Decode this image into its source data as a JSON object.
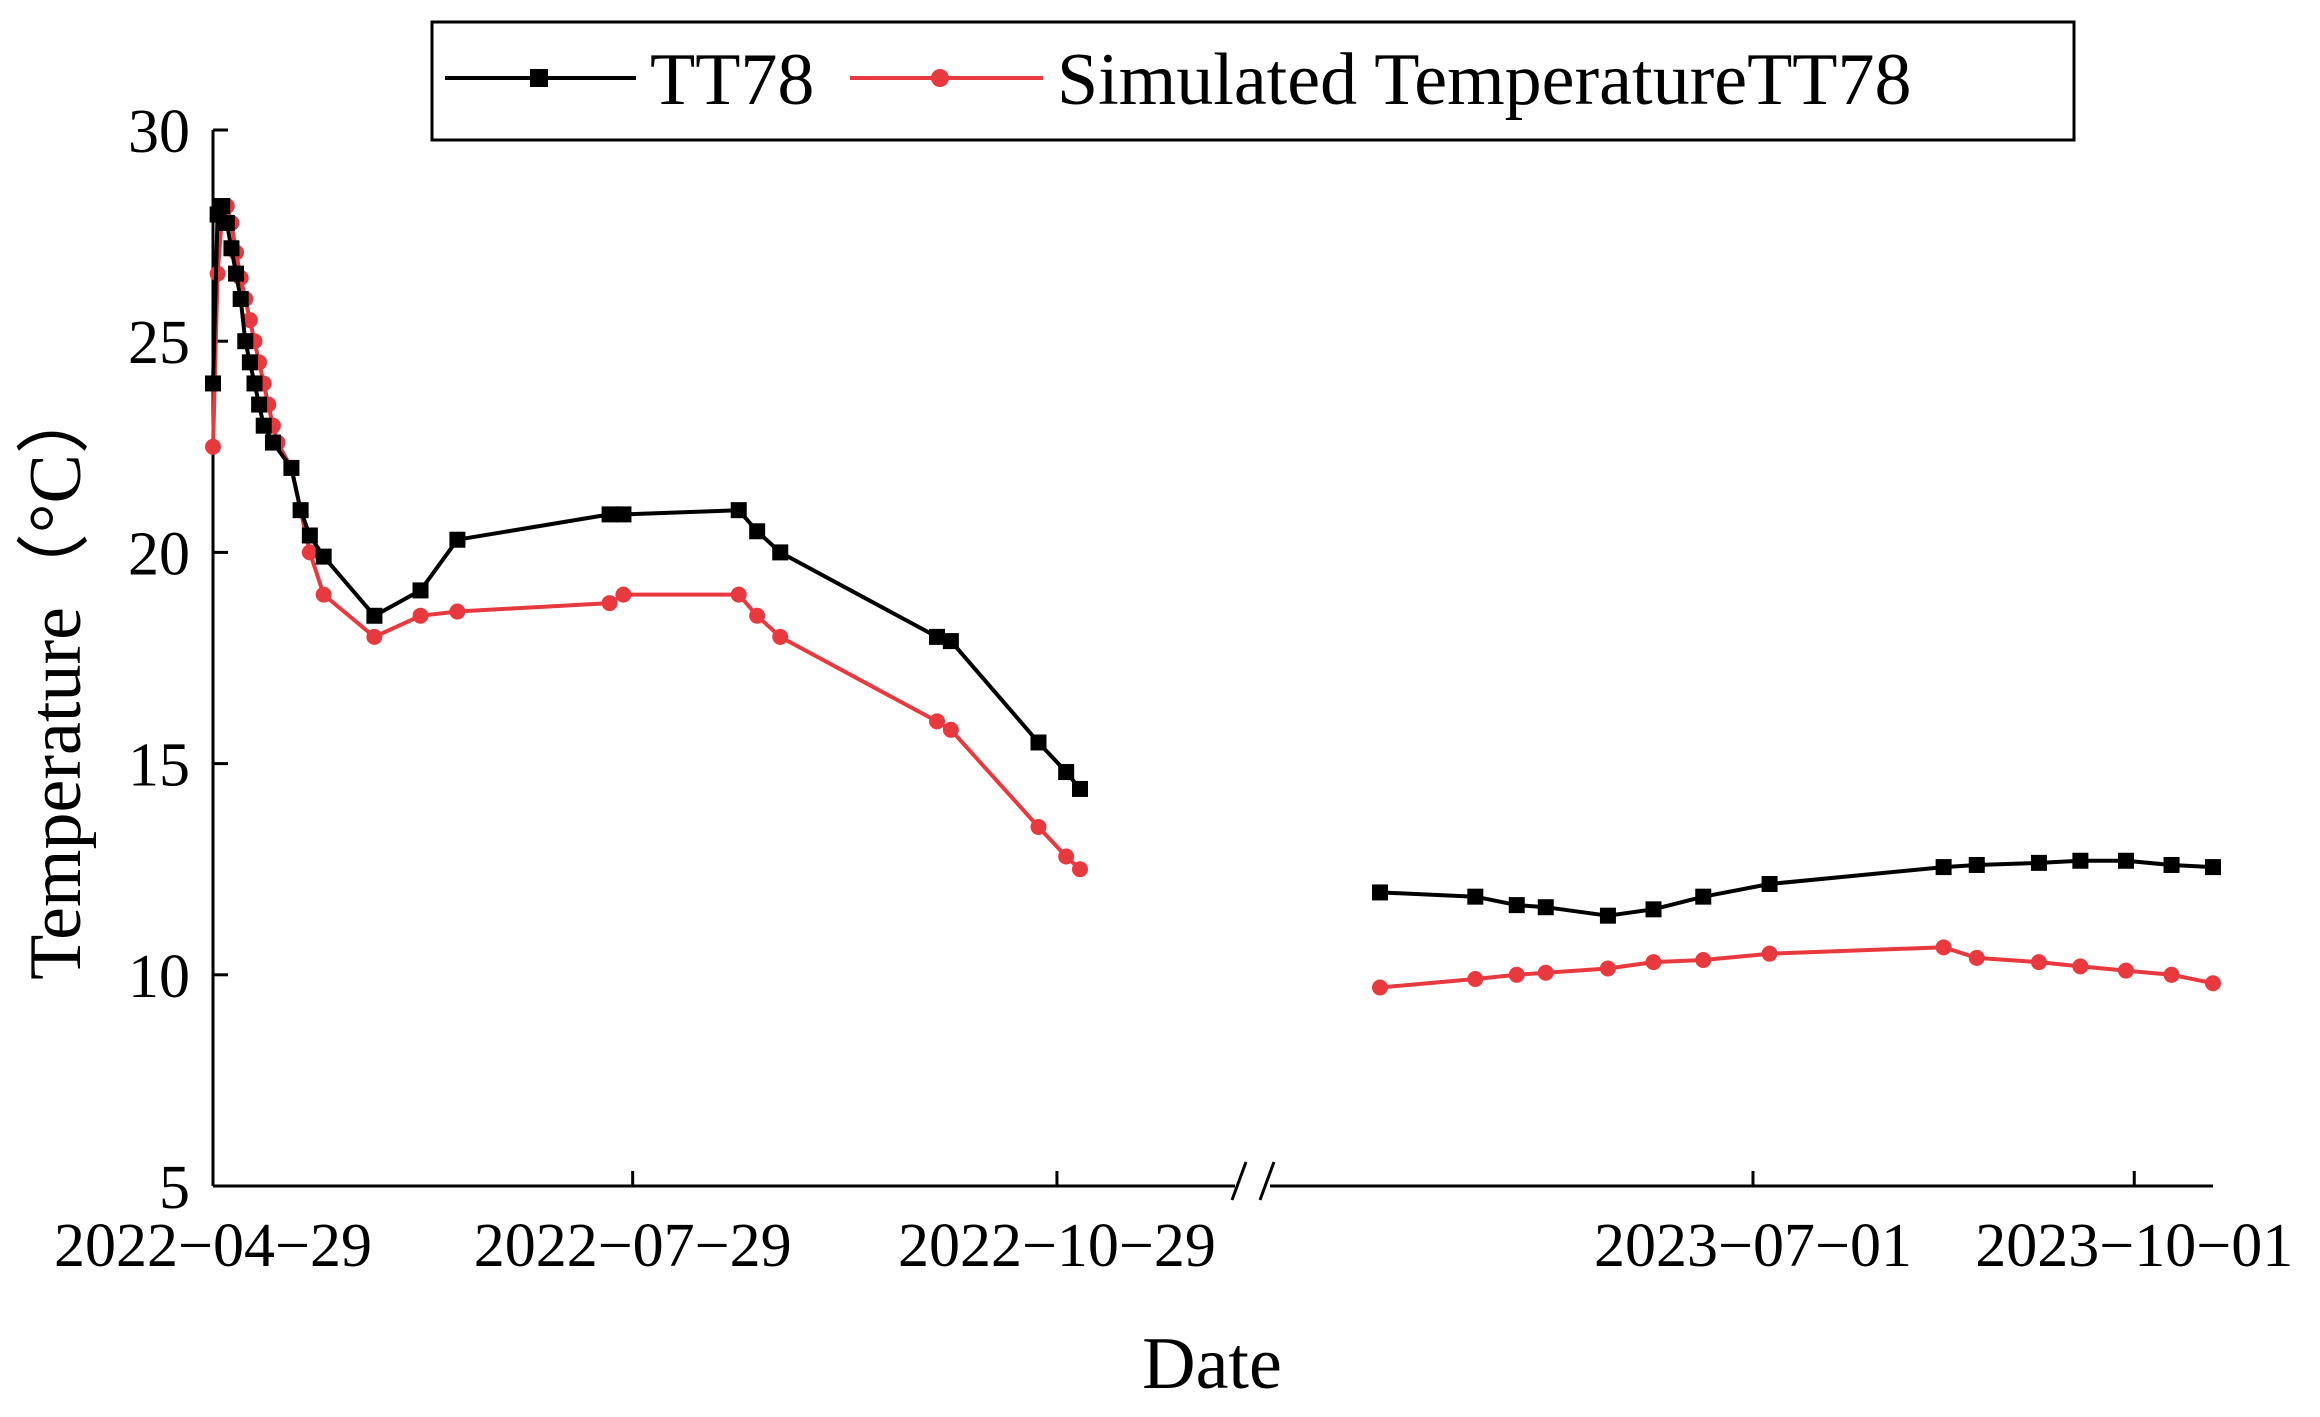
{
  "chart_data": {
    "type": "line",
    "xlabel": "Date",
    "ylabel": "Temperature（°C）",
    "ylim": [
      5,
      30
    ],
    "yticks": [
      5,
      10,
      15,
      20,
      25,
      30
    ],
    "x_axis_break": true,
    "segments": [
      {
        "xlim": [
          "2022-04-29",
          "2022-11-03"
        ],
        "ticks": [
          "2022-04-29",
          "2022-07-29",
          "2022-10-29"
        ]
      },
      {
        "xlim": [
          "2023-04-02",
          "2023-10-20"
        ],
        "ticks": [
          "2023-07-01",
          "2023-10-01"
        ]
      }
    ],
    "legend_position": "top",
    "series": [
      {
        "name": "TT78",
        "color": "#000000",
        "marker": "square",
        "points": [
          [
            "2022-04-29",
            24.0
          ],
          [
            "2022-04-30",
            28.0
          ],
          [
            "2022-05-01",
            28.2
          ],
          [
            "2022-05-02",
            27.8
          ],
          [
            "2022-05-03",
            27.2
          ],
          [
            "2022-05-04",
            26.6
          ],
          [
            "2022-05-05",
            26.0
          ],
          [
            "2022-05-06",
            25.0
          ],
          [
            "2022-05-07",
            24.5
          ],
          [
            "2022-05-08",
            24.0
          ],
          [
            "2022-05-09",
            23.5
          ],
          [
            "2022-05-10",
            23.0
          ],
          [
            "2022-05-12",
            22.6
          ],
          [
            "2022-05-16",
            22.0
          ],
          [
            "2022-05-18",
            21.0
          ],
          [
            "2022-05-20",
            20.4
          ],
          [
            "2022-05-23",
            19.9
          ],
          [
            "2022-06-03",
            18.5
          ],
          [
            "2022-06-13",
            19.1
          ],
          [
            "2022-06-21",
            20.3
          ],
          [
            "2022-07-24",
            20.9
          ],
          [
            "2022-07-27",
            20.9
          ],
          [
            "2022-08-21",
            21.0
          ],
          [
            "2022-08-25",
            20.5
          ],
          [
            "2022-08-30",
            20.0
          ],
          [
            "2022-10-03",
            18.0
          ],
          [
            "2022-10-06",
            17.9
          ],
          [
            "2022-10-25",
            15.5
          ],
          [
            "2022-10-31",
            14.8
          ],
          [
            "2022-11-03",
            14.4
          ]
        ]
      },
      {
        "name": "Simulated TemperatureTT78",
        "color": "#e8393e",
        "marker": "circle",
        "points": [
          [
            "2022-04-29",
            22.5
          ],
          [
            "2022-04-30",
            26.6
          ],
          [
            "2022-05-01",
            28.0
          ],
          [
            "2022-05-02",
            28.2
          ],
          [
            "2022-05-03",
            27.8
          ],
          [
            "2022-05-04",
            27.1
          ],
          [
            "2022-05-05",
            26.5
          ],
          [
            "2022-05-06",
            26.0
          ],
          [
            "2022-05-07",
            25.5
          ],
          [
            "2022-05-08",
            25.0
          ],
          [
            "2022-05-09",
            24.5
          ],
          [
            "2022-05-10",
            24.0
          ],
          [
            "2022-05-11",
            23.5
          ],
          [
            "2022-05-12",
            23.0
          ],
          [
            "2022-05-13",
            22.6
          ],
          [
            "2022-05-16",
            22.0
          ],
          [
            "2022-05-18",
            21.0
          ],
          [
            "2022-05-20",
            20.0
          ],
          [
            "2022-05-23",
            19.0
          ],
          [
            "2022-06-03",
            18.0
          ],
          [
            "2022-06-13",
            18.5
          ],
          [
            "2022-06-21",
            18.6
          ],
          [
            "2022-07-24",
            18.8
          ],
          [
            "2022-07-27",
            19.0
          ],
          [
            "2022-08-21",
            19.0
          ],
          [
            "2022-08-25",
            18.5
          ],
          [
            "2022-08-30",
            18.0
          ],
          [
            "2022-10-03",
            16.0
          ],
          [
            "2022-10-06",
            15.8
          ],
          [
            "2022-10-25",
            13.5
          ],
          [
            "2022-10-31",
            12.8
          ],
          [
            "2022-11-03",
            12.5
          ]
        ]
      }
    ],
    "series_after_break": [
      {
        "name": "TT78",
        "points": [
          [
            "2023-04-02",
            11.95
          ],
          [
            "2023-04-25",
            11.85
          ],
          [
            "2023-05-05",
            11.65
          ],
          [
            "2023-05-12",
            11.6
          ],
          [
            "2023-05-27",
            11.4
          ],
          [
            "2023-06-07",
            11.55
          ],
          [
            "2023-06-19",
            11.85
          ],
          [
            "2023-07-05",
            12.15
          ],
          [
            "2023-08-16",
            12.55
          ],
          [
            "2023-08-24",
            12.6
          ],
          [
            "2023-09-08",
            12.65
          ],
          [
            "2023-09-18",
            12.7
          ],
          [
            "2023-09-29",
            12.7
          ],
          [
            "2023-10-10",
            12.6
          ],
          [
            "2023-10-20",
            12.55
          ]
        ]
      },
      {
        "name": "Simulated TemperatureTT78",
        "points": [
          [
            "2023-04-02",
            9.7
          ],
          [
            "2023-04-25",
            9.9
          ],
          [
            "2023-05-05",
            10.0
          ],
          [
            "2023-05-12",
            10.05
          ],
          [
            "2023-05-27",
            10.15
          ],
          [
            "2023-06-07",
            10.3
          ],
          [
            "2023-06-19",
            10.35
          ],
          [
            "2023-07-05",
            10.5
          ],
          [
            "2023-08-16",
            10.65
          ],
          [
            "2023-08-24",
            10.4
          ],
          [
            "2023-09-08",
            10.3
          ],
          [
            "2023-09-18",
            10.2
          ],
          [
            "2023-09-29",
            10.1
          ],
          [
            "2023-10-10",
            10.0
          ],
          [
            "2023-10-20",
            9.8
          ]
        ]
      }
    ]
  }
}
